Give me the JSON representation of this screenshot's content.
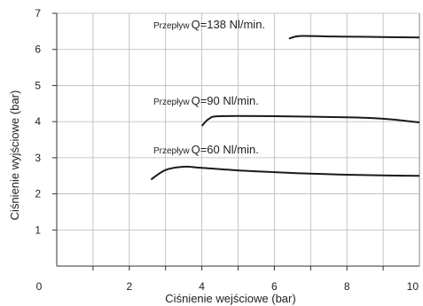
{
  "chart_data": {
    "type": "line",
    "title": "",
    "xlabel": "Ciśnienie wejściowe (bar)",
    "ylabel": "Ciśnienie wyjściowe (bar)",
    "xlim": [
      0,
      10
    ],
    "ylim": [
      0,
      7
    ],
    "xticks": [
      "0",
      "2",
      "4",
      "6",
      "8",
      "10"
    ],
    "yticks": [
      "1",
      "2",
      "3",
      "4",
      "5",
      "6",
      "7"
    ],
    "grid": true,
    "legend": "none",
    "line_color": "#1a1a1a",
    "series": [
      {
        "annotation_prefix": "Przepływ",
        "annotation_value": "Q=138 Nl/min.",
        "points": [
          [
            6.4,
            6.3
          ],
          [
            6.7,
            6.37
          ],
          [
            7.5,
            6.36
          ],
          [
            8.5,
            6.35
          ],
          [
            10.0,
            6.33
          ]
        ]
      },
      {
        "annotation_prefix": "Przepływ",
        "annotation_value": "Q=90 Nl/min.",
        "points": [
          [
            4.0,
            3.88
          ],
          [
            4.2,
            4.08
          ],
          [
            4.5,
            4.15
          ],
          [
            6.0,
            4.15
          ],
          [
            8.0,
            4.12
          ],
          [
            9.0,
            4.08
          ],
          [
            10.0,
            3.98
          ]
        ]
      },
      {
        "annotation_prefix": "Przepływ",
        "annotation_value": "Q=60 Nl/min.",
        "points": [
          [
            2.6,
            2.4
          ],
          [
            3.0,
            2.66
          ],
          [
            3.5,
            2.75
          ],
          [
            4.0,
            2.72
          ],
          [
            5.0,
            2.65
          ],
          [
            6.0,
            2.6
          ],
          [
            7.0,
            2.56
          ],
          [
            8.0,
            2.53
          ],
          [
            9.0,
            2.51
          ],
          [
            10.0,
            2.5
          ]
        ]
      }
    ]
  }
}
